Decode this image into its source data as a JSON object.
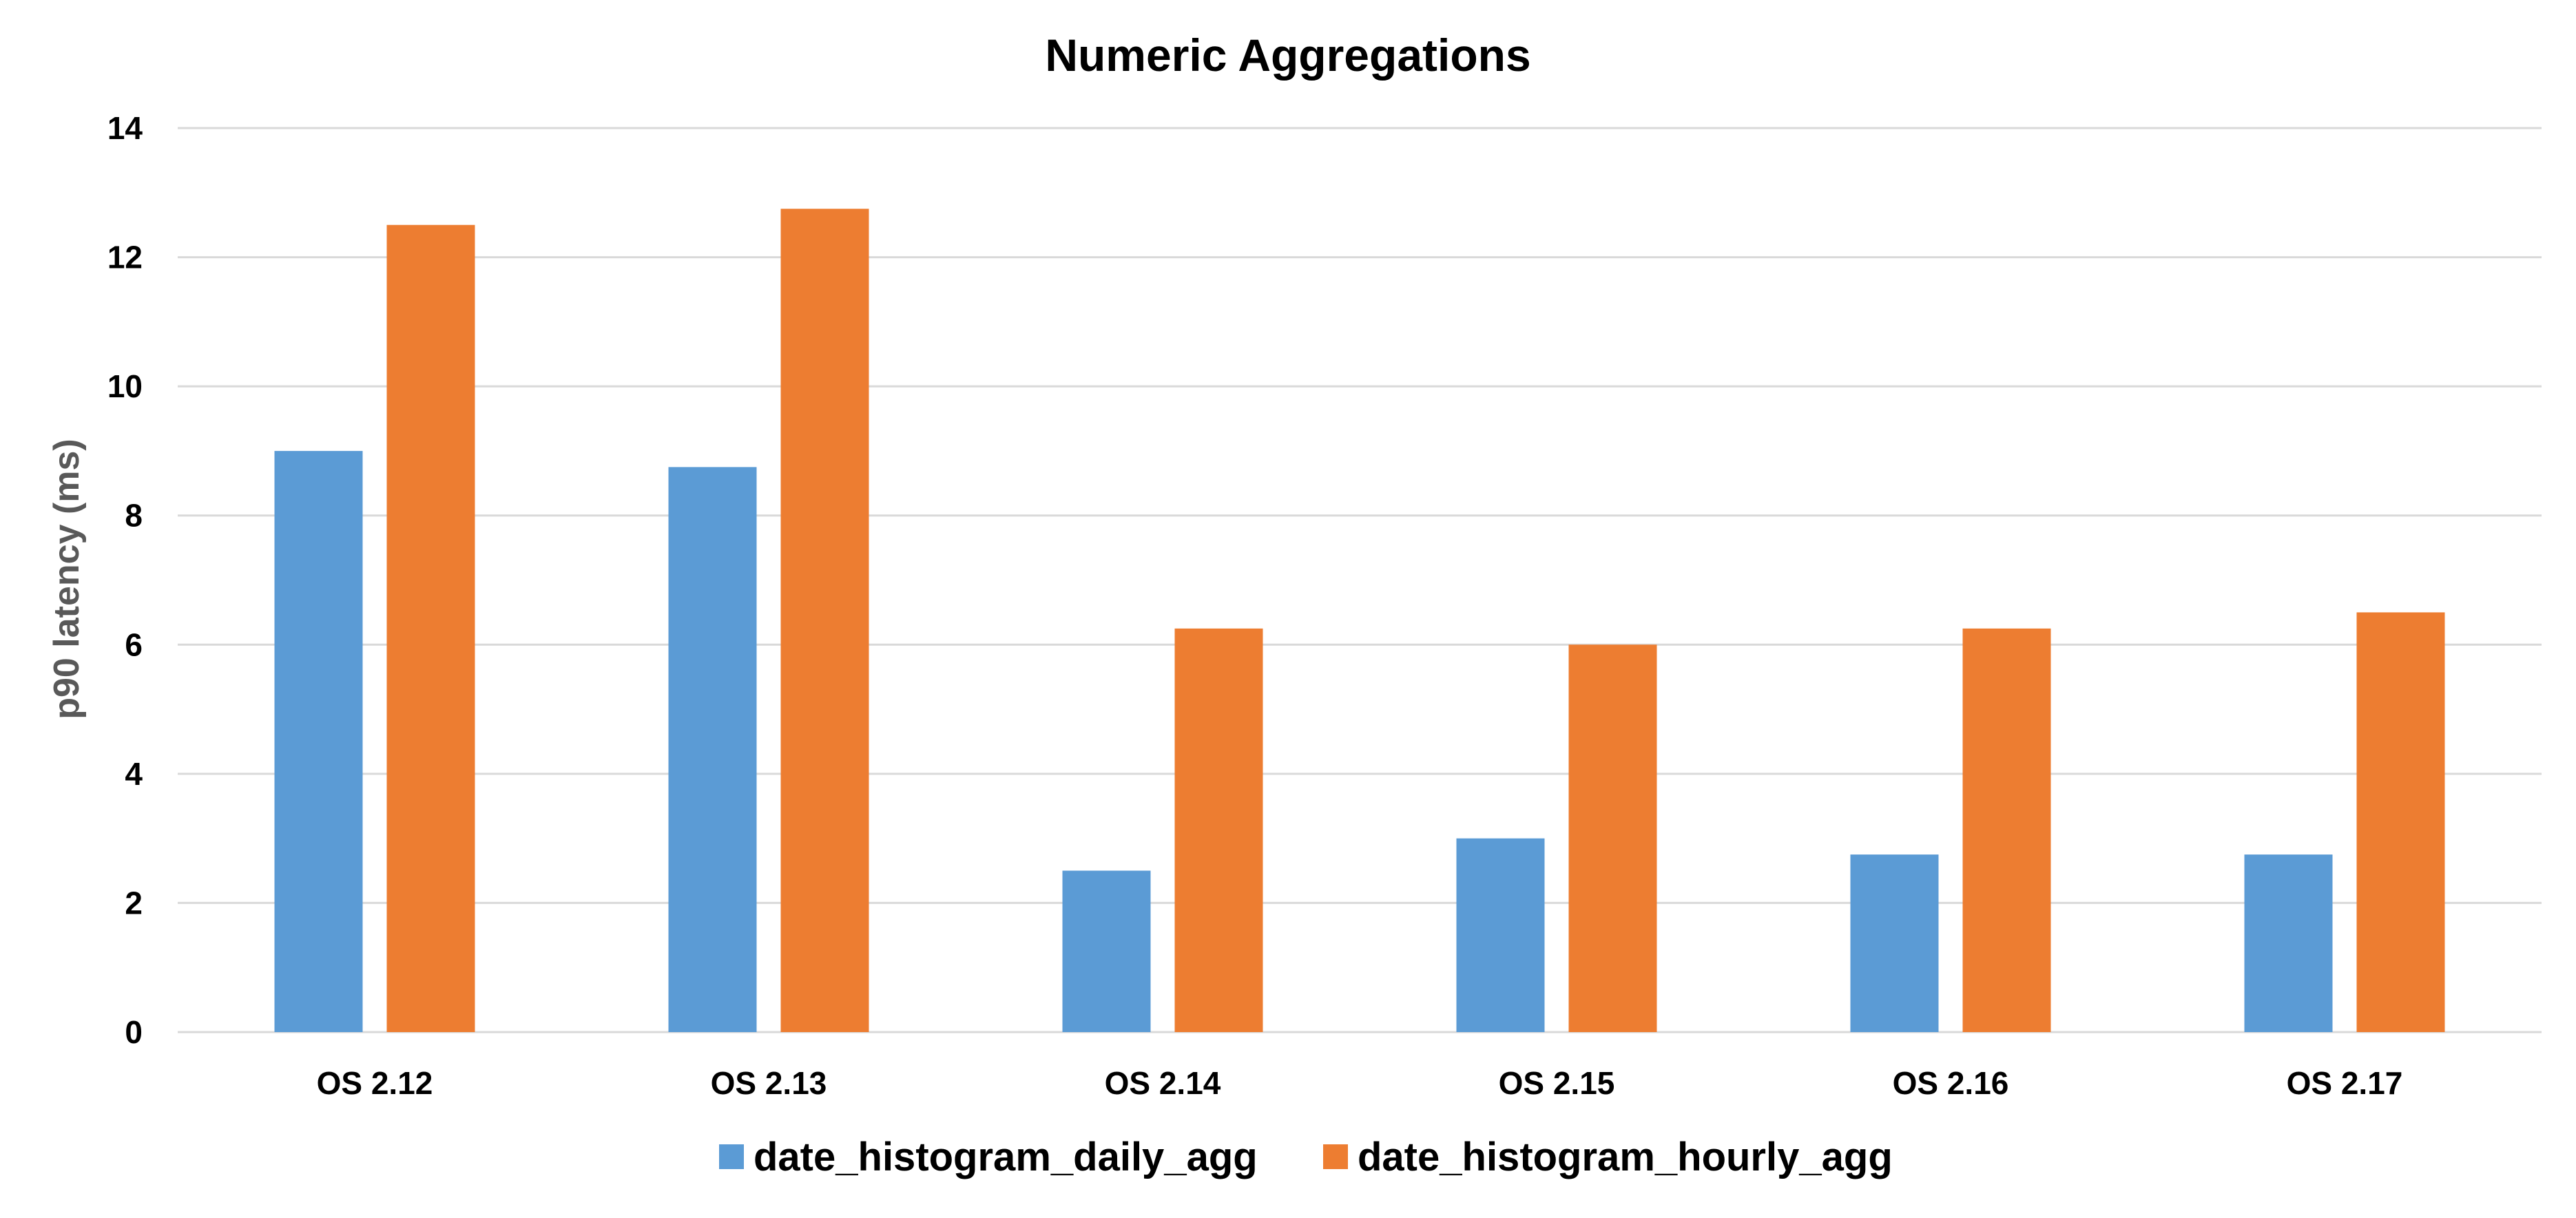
{
  "chart_data": {
    "type": "bar",
    "title": "Numeric Aggregations",
    "xlabel": "",
    "ylabel": "p90 latency (ms)",
    "ylim": [
      0,
      14
    ],
    "yticks": [
      0,
      2,
      4,
      6,
      8,
      10,
      12,
      14
    ],
    "ytick_labels": [
      "0",
      "2",
      "4",
      "6",
      "8",
      "10",
      "12",
      "14"
    ],
    "grid": true,
    "legend_position": "bottom",
    "categories": [
      "OS 2.12",
      "OS 2.13",
      "OS 2.14",
      "OS 2.15",
      "OS 2.16",
      "OS 2.17"
    ],
    "series": [
      {
        "name": "date_histogram_daily_agg",
        "color": "#5b9bd5",
        "values": [
          9.0,
          8.75,
          2.5,
          3.0,
          2.75,
          2.75
        ]
      },
      {
        "name": "date_histogram_hourly_agg",
        "color": "#ed7d31",
        "values": [
          12.5,
          12.75,
          6.25,
          6.0,
          6.25,
          6.5
        ]
      }
    ]
  }
}
